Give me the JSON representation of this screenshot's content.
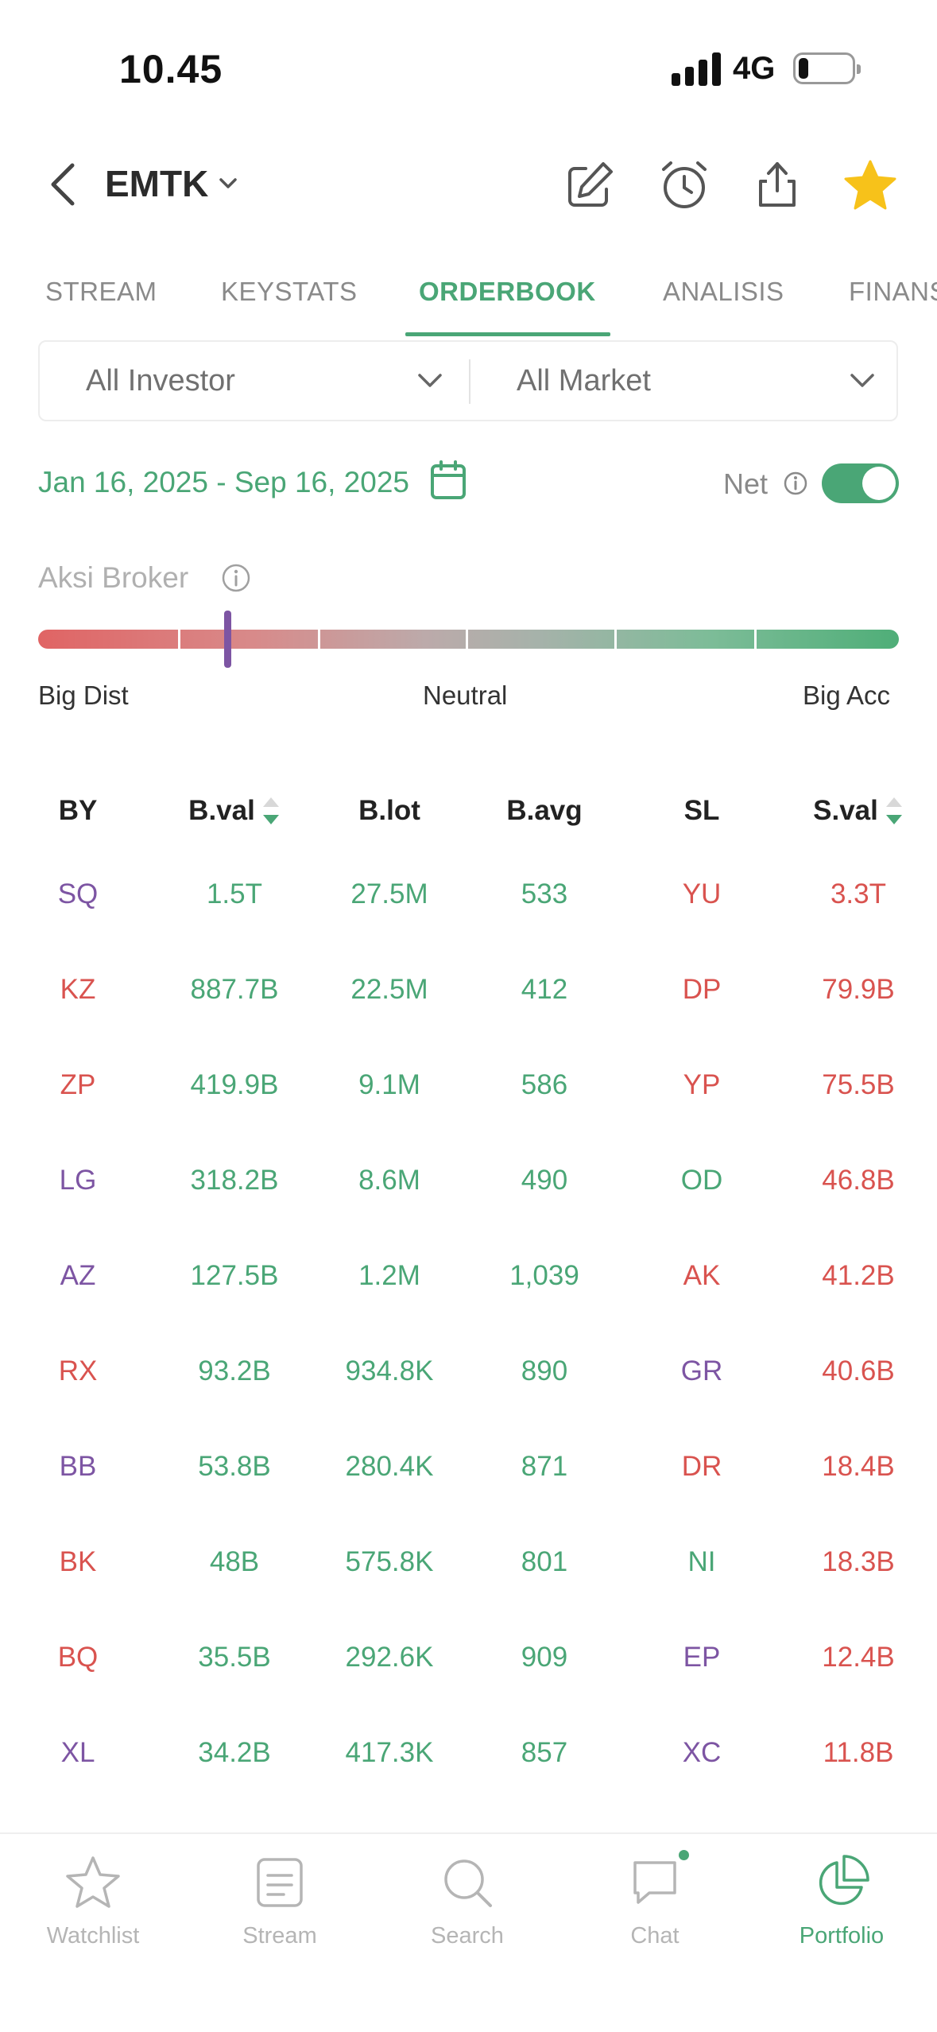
{
  "status_bar": {
    "time": "10.45",
    "network": "4G"
  },
  "header": {
    "ticker": "EMTK"
  },
  "tabs": [
    {
      "label": "STREAM",
      "active": false
    },
    {
      "label": "KEYSTATS",
      "active": false
    },
    {
      "label": "ORDERBOOK",
      "active": true
    },
    {
      "label": "ANALISIS",
      "active": false
    },
    {
      "label": "FINANSIAL",
      "active": false
    }
  ],
  "filters": {
    "investor": "All Investor",
    "market": "All Market"
  },
  "date_range": "Jan 16, 2025 - Sep 16, 2025",
  "net": {
    "label": "Net",
    "enabled": true
  },
  "aksi_broker": {
    "label": "Aksi Broker",
    "left_label": "Big Dist",
    "center_label": "Neutral",
    "right_label": "Big Acc",
    "level": 0.22
  },
  "table": {
    "headers": {
      "by": "BY",
      "bval": "B.val",
      "blot": "B.lot",
      "bavg": "B.avg",
      "sl": "SL",
      "sval": "S.val"
    },
    "rows": [
      {
        "by": "SQ",
        "by_color": "purple",
        "bval": "1.5T",
        "blot": "27.5M",
        "bavg": "533",
        "sl": "YU",
        "sl_color": "red",
        "sval": "3.3T"
      },
      {
        "by": "KZ",
        "by_color": "red",
        "bval": "887.7B",
        "blot": "22.5M",
        "bavg": "412",
        "sl": "DP",
        "sl_color": "red",
        "sval": "79.9B"
      },
      {
        "by": "ZP",
        "by_color": "red",
        "bval": "419.9B",
        "blot": "9.1M",
        "bavg": "586",
        "sl": "YP",
        "sl_color": "red",
        "sval": "75.5B"
      },
      {
        "by": "LG",
        "by_color": "purple",
        "bval": "318.2B",
        "blot": "8.6M",
        "bavg": "490",
        "sl": "OD",
        "sl_color": "green",
        "sval": "46.8B"
      },
      {
        "by": "AZ",
        "by_color": "purple",
        "bval": "127.5B",
        "blot": "1.2M",
        "bavg": "1,039",
        "sl": "AK",
        "sl_color": "red",
        "sval": "41.2B"
      },
      {
        "by": "RX",
        "by_color": "red",
        "bval": "93.2B",
        "blot": "934.8K",
        "bavg": "890",
        "sl": "GR",
        "sl_color": "purple",
        "sval": "40.6B"
      },
      {
        "by": "BB",
        "by_color": "purple",
        "bval": "53.8B",
        "blot": "280.4K",
        "bavg": "871",
        "sl": "DR",
        "sl_color": "red",
        "sval": "18.4B"
      },
      {
        "by": "BK",
        "by_color": "red",
        "bval": "48B",
        "blot": "575.8K",
        "bavg": "801",
        "sl": "NI",
        "sl_color": "green",
        "sval": "18.3B"
      },
      {
        "by": "BQ",
        "by_color": "red",
        "bval": "35.5B",
        "blot": "292.6K",
        "bavg": "909",
        "sl": "EP",
        "sl_color": "purple",
        "sval": "12.4B"
      },
      {
        "by": "XL",
        "by_color": "purple",
        "bval": "34.2B",
        "blot": "417.3K",
        "bavg": "857",
        "sl": "XC",
        "sl_color": "purple",
        "sval": "11.8B"
      }
    ]
  },
  "bottom_nav": [
    {
      "label": "Watchlist",
      "icon": "star-icon",
      "active": false
    },
    {
      "label": "Stream",
      "icon": "stream-icon",
      "active": false
    },
    {
      "label": "Search",
      "icon": "search-icon",
      "active": false
    },
    {
      "label": "Chat",
      "icon": "chat-icon",
      "active": false,
      "badge": true
    },
    {
      "label": "Portfolio",
      "icon": "portfolio-icon",
      "active": true
    }
  ],
  "colors": {
    "accent": "#4aa676",
    "sell": "#d9534f",
    "purple": "#7d55a3",
    "favorite": "#f7c21a"
  }
}
